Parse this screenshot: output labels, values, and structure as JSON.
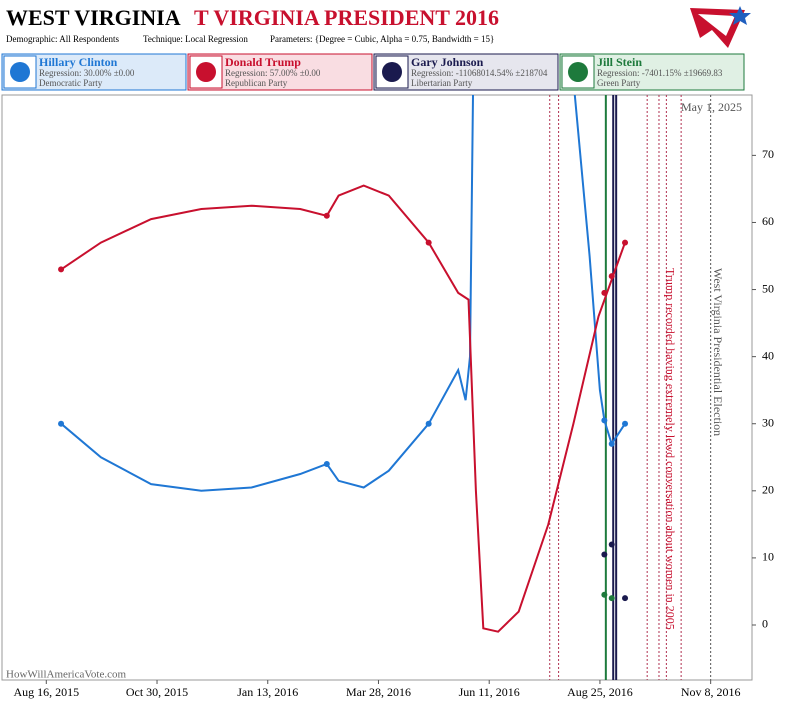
{
  "chart_data": {
    "type": "line",
    "title": "WEST VIRGINIA",
    "subtitle": "T VIRGINIA PRESIDENT 2016",
    "parameters": [
      "Demographic: All Respondents",
      "Technique: Local Regression",
      "Parameters: {Degree = Cubic, Alpha = 0.75, Bandwidth = 15}"
    ],
    "date_label": "May 1, 2025",
    "watermark": "HowWillAmericaVote.com",
    "xlim": [
      "2015-07-17",
      "2016-12-06"
    ],
    "ylim": [
      -8.2,
      79
    ],
    "xticks": [
      {
        "value": "2015-08-16",
        "label": "Aug 16, 2015"
      },
      {
        "value": "2015-10-30",
        "label": "Oct 30, 2015"
      },
      {
        "value": "2016-01-13",
        "label": "Jan 13, 2016"
      },
      {
        "value": "2016-03-28",
        "label": "Mar 28, 2016"
      },
      {
        "value": "2016-06-11",
        "label": "Jun 11, 2016"
      },
      {
        "value": "2016-08-25",
        "label": "Aug 25, 2016"
      },
      {
        "value": "2016-11-08",
        "label": "Nov 8, 2016"
      }
    ],
    "yticks": [
      0,
      10,
      20,
      30,
      40,
      50,
      60,
      70
    ],
    "grid": false,
    "series": [
      {
        "name": "Hillary Clinton",
        "regression": "Regression: 30.00% ±0.00",
        "party": "Democratic Party",
        "color": "#1f77d4",
        "bg": "#dceaf9",
        "curve": {
          "x": [
            "2015-08-26",
            "2015-09-22",
            "2015-10-26",
            "2015-11-29",
            "2016-01-02",
            "2016-02-04",
            "2016-02-22",
            "2016-03-01",
            "2016-03-18",
            "2016-04-04",
            "2016-05-01",
            "2016-05-21",
            "2016-05-26",
            "2016-05-29",
            "2016-05-31",
            "2016-06-01",
            "2016-08-08",
            "2016-08-18",
            "2016-08-25",
            "2016-08-28",
            "2016-09-02",
            "2016-09-11"
          ],
          "values": [
            30,
            25,
            21,
            20,
            20.5,
            22.5,
            24,
            21.5,
            20.5,
            23,
            30,
            38,
            33.5,
            40,
            79,
            null,
            79,
            55,
            35,
            30.5,
            27,
            30
          ]
        },
        "polls": {
          "x": [
            "2015-08-26",
            "2016-02-22",
            "2016-05-01",
            "2016-08-28",
            "2016-09-02",
            "2016-09-11"
          ],
          "values": [
            30,
            24,
            30,
            30.5,
            27,
            30
          ]
        }
      },
      {
        "name": "Donald Trump",
        "regression": "Regression: 57.00% ±0.00",
        "party": "Republican Party",
        "color": "#c8102e",
        "bg": "#f9dde2",
        "curve": {
          "x": [
            "2015-08-26",
            "2015-09-22",
            "2015-10-26",
            "2015-11-29",
            "2016-01-02",
            "2016-02-04",
            "2016-02-22",
            "2016-03-01",
            "2016-03-18",
            "2016-04-04",
            "2016-05-01",
            "2016-05-21",
            "2016-05-28",
            "2016-06-02",
            "2016-06-07",
            "2016-06-17",
            "2016-07-01",
            "2016-07-21",
            "2016-08-07",
            "2016-08-24",
            "2016-09-11"
          ],
          "values": [
            53,
            57,
            60.5,
            62,
            62.5,
            62,
            61,
            64,
            65.5,
            64,
            57,
            49.5,
            48.5,
            20,
            -0.5,
            -1,
            2,
            15,
            30,
            46,
            57
          ]
        },
        "polls": {
          "x": [
            "2015-08-26",
            "2016-02-22",
            "2016-05-01",
            "2016-08-28",
            "2016-09-02",
            "2016-09-11"
          ],
          "values": [
            53,
            61,
            57,
            49.5,
            52,
            57
          ]
        }
      },
      {
        "name": "Gary Johnson",
        "regression": "Regression: -11068014.54% ±218704",
        "party": "Libertarian Party",
        "color": "#1a1a4e",
        "bg": "#e6e6ee",
        "polls": {
          "x": [
            "2016-08-28",
            "2016-09-02",
            "2016-09-11"
          ],
          "values": [
            10.5,
            12,
            4
          ]
        }
      },
      {
        "name": "Jill Stein",
        "regression": "Regression: -7401.15% ±19669.83",
        "party": "Green Party",
        "color": "#1e7a3c",
        "bg": "#e0f0e4",
        "polls": {
          "x": [
            "2016-08-28",
            "2016-09-02"
          ],
          "values": [
            4.5,
            4
          ]
        }
      }
    ],
    "event_lines": [
      {
        "x": "2016-07-22",
        "color": "#b03050",
        "dash": "2,2",
        "width": 1
      },
      {
        "x": "2016-07-28",
        "color": "#b03050",
        "dash": "2,2",
        "width": 1
      },
      {
        "x": "2016-08-29",
        "color": "#1e7a3c",
        "dash": "",
        "width": 2
      },
      {
        "x": "2016-09-03",
        "color": "#1a1a4e",
        "dash": "",
        "width": 2
      },
      {
        "x": "2016-09-05",
        "color": "#1a1a4e",
        "dash": "",
        "width": 2
      },
      {
        "x": "2016-09-26",
        "color": "#b03050",
        "dash": "2,2",
        "width": 1
      },
      {
        "x": "2016-10-04",
        "color": "#b03050",
        "dash": "2,2",
        "width": 1
      },
      {
        "x": "2016-10-09",
        "color": "#b03050",
        "dash": "2,2",
        "width": 1
      },
      {
        "x": "2016-10-19",
        "color": "#b03050",
        "dash": "2,2",
        "width": 1
      },
      {
        "x": "2016-11-08",
        "color": "#555555",
        "dash": "2,2",
        "width": 1
      }
    ],
    "annotations": [
      {
        "x": "2016-10-07",
        "text": "Trump recorded having extremely lewd conversation about women in 2005",
        "color": "#c8102e"
      },
      {
        "x": "2016-11-08",
        "text": "West Virginia Presidential Election",
        "color": "#555555"
      }
    ]
  }
}
